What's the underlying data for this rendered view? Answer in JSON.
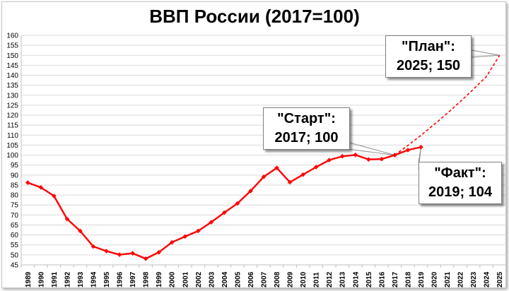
{
  "chart_data": {
    "type": "line",
    "title": "ВВП России (2017=100)",
    "xlabel": "",
    "ylabel": "",
    "ylim": [
      45,
      160
    ],
    "y_ticks": [
      45,
      50,
      55,
      60,
      65,
      70,
      75,
      80,
      85,
      90,
      95,
      100,
      105,
      110,
      115,
      120,
      125,
      130,
      135,
      140,
      145,
      150,
      155,
      160
    ],
    "x_ticks": [
      "1989",
      "1990",
      "1991",
      "1992",
      "1993",
      "1994",
      "1995",
      "1996",
      "1997",
      "1998",
      "1999",
      "2000",
      "2001",
      "2002",
      "2003",
      "2004",
      "2005",
      "2006",
      "2007",
      "2008",
      "2009",
      "2010",
      "2011",
      "2012",
      "2013",
      "2014",
      "2015",
      "2016",
      "2017",
      "2018",
      "2019",
      "2020",
      "2021",
      "2022",
      "2023",
      "2024",
      "2025"
    ],
    "grid": true,
    "series": [
      {
        "style": "solid-with-markers",
        "color": "#ff0000",
        "x": [
          1989,
          1990,
          1991,
          1992,
          1993,
          1994,
          1995,
          1996,
          1997,
          1998,
          1999,
          2000,
          2001,
          2002,
          2003,
          2004,
          2005,
          2006,
          2007,
          2008,
          2009,
          2010,
          2011,
          2012,
          2013,
          2014,
          2015,
          2016,
          2017,
          2018,
          2019
        ],
        "y": [
          86.2,
          83.8,
          79.5,
          68.0,
          62.0,
          54.2,
          51.9,
          50.1,
          50.8,
          48.1,
          51.3,
          56.3,
          59.2,
          62.0,
          66.4,
          71.2,
          75.8,
          82.0,
          89.1,
          93.6,
          86.4,
          90.2,
          94.0,
          97.5,
          99.4,
          100.1,
          97.8,
          98.0,
          100.0,
          102.5,
          104.0
        ]
      },
      {
        "style": "dashed",
        "color": "#ff0000",
        "x": [
          2017,
          2018,
          2019,
          2020,
          2021,
          2022,
          2023,
          2024,
          2025
        ],
        "y": [
          100,
          104.8,
          109.9,
          115.3,
          120.9,
          126.8,
          133.0,
          139.4,
          150
        ]
      }
    ],
    "annotations": [
      {
        "id": "start",
        "line1": "\"Старт\":",
        "line2": "2017; 100",
        "x": 2017,
        "y": 100
      },
      {
        "id": "plan",
        "line1": "\"План\":",
        "line2": "2025; 150",
        "x": 2025,
        "y": 150
      },
      {
        "id": "fact",
        "line1": "\"Факт\":",
        "line2": "2019; 104",
        "x": 2019,
        "y": 104
      }
    ]
  }
}
